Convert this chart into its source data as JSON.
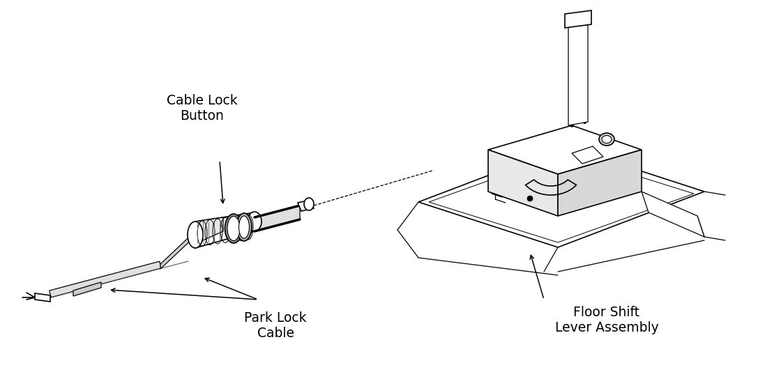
{
  "background_color": "#ffffff",
  "figure_width": 10.97,
  "figure_height": 5.34,
  "dpi": 100,
  "labels": {
    "cable_lock_button": "Cable Lock\nButton",
    "park_lock_cable": "Park Lock\nCable",
    "floor_shift": "Floor Shift\nLever Assembly"
  },
  "label_fontsize": 13.5,
  "line_color": "#000000"
}
